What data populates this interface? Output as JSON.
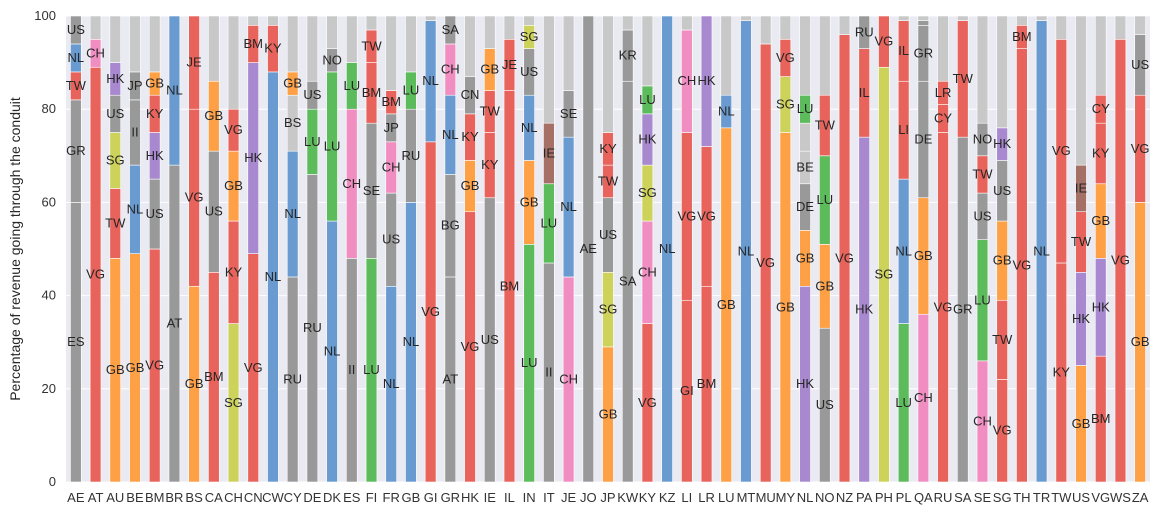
{
  "colors": {
    "background": "#eaeaf2",
    "grid": "#ffffff",
    "palette": {
      "ES": "#999999",
      "GR": "#999999",
      "TW": "#e8635b",
      "NL": "#6a9bd0",
      "US": "#999999",
      "VG": "#e8635b",
      "CH": "#f08ec2",
      "GB": "#fda046",
      "II": "#999999",
      "SG": "#cdd25a",
      "HK": "#a889cf",
      "KY": "#e8635b",
      "BR": "#999999",
      "AT": "#999999",
      "JE": "#e8635b",
      "BM": "#e8635b",
      "RU": "#999999",
      "LU": "#5cbc5b",
      "NO": "#999999",
      "SE": "#999999",
      "JP": "#999999",
      "GI": "#e8635b",
      "BG": "#999999",
      "SA": "#999999",
      "CN": "#999999",
      "IE": "#a57065",
      "IL": "#e8635b",
      "AE": "#999999",
      "KR": "#999999",
      "LI": "#e8635b",
      "DE": "#999999",
      "FR": "#999999",
      "IN": "#999999",
      "CY": "#e8635b",
      "LR": "#e8635b",
      "MT": "#e8635b",
      "OTHER": "#c8c8c8"
    }
  },
  "chart_data": {
    "type": "bar",
    "stacked": true,
    "title": "",
    "xlabel": "",
    "ylabel": "Percentage of revenue going through the conduit",
    "ylim": [
      0,
      100
    ],
    "yticks": [
      0,
      20,
      40,
      60,
      80,
      100
    ],
    "grid": true,
    "categories": [
      "AE",
      "AT",
      "AU",
      "BE",
      "BM",
      "BR",
      "BS",
      "CA",
      "CH",
      "CN",
      "CW",
      "CY",
      "DE",
      "DK",
      "ES",
      "FI",
      "FR",
      "GB",
      "GI",
      "GR",
      "HK",
      "IE",
      "IL",
      "IN",
      "IT",
      "JE",
      "JO",
      "JP",
      "KW",
      "KY",
      "KZ",
      "LI",
      "LR",
      "LU",
      "MT",
      "MU",
      "MY",
      "NL",
      "NO",
      "NZ",
      "PA",
      "PH",
      "PL",
      "QA",
      "RU",
      "SA",
      "SE",
      "SG",
      "TH",
      "TR",
      "TW",
      "US",
      "VG",
      "WS",
      "ZA"
    ],
    "bars": [
      {
        "category": "AE",
        "segments": [
          [
            "ES",
            60
          ],
          [
            "GR",
            22
          ],
          [
            "TW",
            6
          ],
          [
            "NL",
            6
          ],
          [
            "US",
            6
          ]
        ]
      },
      {
        "category": "AT",
        "segments": [
          [
            "VG",
            89
          ],
          [
            "CH",
            6
          ],
          [
            "",
            5
          ]
        ]
      },
      {
        "category": "AU",
        "segments": [
          [
            "GB",
            48
          ],
          [
            "TW",
            15
          ],
          [
            "SG",
            12
          ],
          [
            "US",
            8
          ],
          [
            "HK",
            7
          ],
          [
            "",
            10
          ]
        ]
      },
      {
        "category": "BE",
        "segments": [
          [
            "GB",
            49
          ],
          [
            "NL",
            19
          ],
          [
            "II",
            14
          ],
          [
            "JP",
            6
          ],
          [
            "",
            12
          ]
        ]
      },
      {
        "category": "BM",
        "segments": [
          [
            "VG",
            50
          ],
          [
            "US",
            15
          ],
          [
            "HK",
            10
          ],
          [
            "KY",
            8
          ],
          [
            "GB",
            5
          ],
          [
            "",
            12
          ]
        ]
      },
      {
        "category": "BR",
        "segments": [
          [
            "AT",
            68
          ],
          [
            "NL",
            32
          ]
        ]
      },
      {
        "category": "BS",
        "segments": [
          [
            "GB",
            42
          ],
          [
            "VG",
            38
          ],
          [
            "JE",
            20
          ]
        ]
      },
      {
        "category": "CA",
        "segments": [
          [
            "BM",
            45
          ],
          [
            "US",
            26
          ],
          [
            "GB",
            15
          ],
          [
            "",
            14
          ]
        ]
      },
      {
        "category": "CH",
        "segments": [
          [
            "SG",
            34
          ],
          [
            "KY",
            22
          ],
          [
            "GB",
            15
          ],
          [
            "VG",
            9
          ],
          [
            "",
            20
          ]
        ]
      },
      {
        "category": "CN",
        "segments": [
          [
            "VG",
            49
          ],
          [
            "HK",
            41
          ],
          [
            "BM",
            8
          ],
          [
            "",
            2
          ]
        ]
      },
      {
        "category": "CW",
        "segments": [
          [
            "NL",
            88
          ],
          [
            "KY",
            10
          ],
          [
            "",
            2
          ]
        ]
      },
      {
        "category": "CY",
        "segments": [
          [
            "RU",
            44
          ],
          [
            "NL",
            27
          ],
          [
            "BS",
            12
          ],
          [
            "GB",
            5
          ],
          [
            "",
            12
          ]
        ]
      },
      {
        "category": "DE",
        "segments": [
          [
            "RU",
            66
          ],
          [
            "LU",
            14
          ],
          [
            "US",
            6
          ],
          [
            "",
            14
          ]
        ]
      },
      {
        "category": "DK",
        "segments": [
          [
            "NL",
            56
          ],
          [
            "LU",
            32
          ],
          [
            "NO",
            5
          ],
          [
            "",
            7
          ]
        ]
      },
      {
        "category": "ES",
        "segments": [
          [
            "II",
            48
          ],
          [
            "CH",
            32
          ],
          [
            "LU",
            10
          ],
          [
            "",
            10
          ]
        ]
      },
      {
        "category": "FI",
        "segments": [
          [
            "LU",
            48
          ],
          [
            "SE",
            29
          ],
          [
            "BM",
            13
          ],
          [
            "TW",
            7
          ],
          [
            "",
            3
          ]
        ]
      },
      {
        "category": "FR",
        "segments": [
          [
            "NL",
            42
          ],
          [
            "US",
            20
          ],
          [
            "CH",
            11
          ],
          [
            "JP",
            6
          ],
          [
            "BM",
            5
          ],
          [
            "",
            16
          ]
        ]
      },
      {
        "category": "GB",
        "segments": [
          [
            "NL",
            60
          ],
          [
            "RU",
            20
          ],
          [
            "LU",
            8
          ],
          [
            "",
            12
          ]
        ]
      },
      {
        "category": "GI",
        "segments": [
          [
            "VG",
            73
          ],
          [
            "NL",
            26
          ],
          [
            "",
            1
          ]
        ]
      },
      {
        "category": "GR",
        "segments": [
          [
            "AT",
            44
          ],
          [
            "BG",
            22
          ],
          [
            "NL",
            17
          ],
          [
            "CH",
            11
          ],
          [
            "SA",
            6
          ]
        ]
      },
      {
        "category": "HK",
        "segments": [
          [
            "VG",
            58
          ],
          [
            "GB",
            11
          ],
          [
            "KY",
            10
          ],
          [
            "CN",
            8
          ],
          [
            "",
            13
          ]
        ]
      },
      {
        "category": "IE",
        "segments": [
          [
            "US",
            61
          ],
          [
            "KY",
            14
          ],
          [
            "TW",
            9
          ],
          [
            "GB",
            9
          ],
          [
            "",
            7
          ]
        ]
      },
      {
        "category": "IL",
        "segments": [
          [
            "BM",
            84
          ],
          [
            "JE",
            11
          ],
          [
            "",
            5
          ]
        ]
      },
      {
        "category": "IN",
        "segments": [
          [
            "LU",
            51
          ],
          [
            "GB",
            18
          ],
          [
            "NL",
            14
          ],
          [
            "US",
            10
          ],
          [
            "SG",
            5
          ],
          [
            "",
            2
          ]
        ]
      },
      {
        "category": "IT",
        "segments": [
          [
            "II",
            47
          ],
          [
            "LU",
            17
          ],
          [
            "IE",
            13
          ],
          [
            "",
            23
          ]
        ]
      },
      {
        "category": "JE",
        "segments": [
          [
            "CH",
            44
          ],
          [
            "NL",
            30
          ],
          [
            "SE",
            10
          ],
          [
            "",
            16
          ]
        ]
      },
      {
        "category": "JO",
        "segments": [
          [
            "AE",
            100
          ]
        ]
      },
      {
        "category": "JP",
        "segments": [
          [
            "GB",
            29
          ],
          [
            "SG",
            16
          ],
          [
            "US",
            16
          ],
          [
            "TW",
            7
          ],
          [
            "KY",
            7
          ],
          [
            "",
            25
          ]
        ]
      },
      {
        "category": "KW",
        "segments": [
          [
            "SA",
            86
          ],
          [
            "KR",
            11
          ],
          [
            "",
            3
          ]
        ]
      },
      {
        "category": "KY",
        "segments": [
          [
            "VG",
            34
          ],
          [
            "CH",
            22
          ],
          [
            "SG",
            12
          ],
          [
            "HK",
            11
          ],
          [
            "LU",
            6
          ],
          [
            "",
            15
          ]
        ]
      },
      {
        "category": "KZ",
        "segments": [
          [
            "NL",
            100
          ]
        ]
      },
      {
        "category": "LI",
        "segments": [
          [
            "GI",
            39
          ],
          [
            "VG",
            36
          ],
          [
            "CH",
            22
          ],
          [
            "",
            3
          ]
        ]
      },
      {
        "category": "LR",
        "segments": [
          [
            "BM",
            42
          ],
          [
            "VG",
            30
          ],
          [
            "HK",
            28
          ]
        ]
      },
      {
        "category": "LU",
        "segments": [
          [
            "GB",
            76
          ],
          [
            "NL",
            7
          ],
          [
            "",
            17
          ]
        ]
      },
      {
        "category": "MT",
        "segments": [
          [
            "NL",
            99
          ],
          [
            "",
            1
          ]
        ]
      },
      {
        "category": "MU",
        "segments": [
          [
            "VG",
            94
          ],
          [
            "",
            6
          ]
        ]
      },
      {
        "category": "MY",
        "segments": [
          [
            "GB",
            75
          ],
          [
            "SG",
            12
          ],
          [
            "VG",
            8
          ],
          [
            "",
            5
          ]
        ]
      },
      {
        "category": "NL",
        "segments": [
          [
            "HK",
            42
          ],
          [
            "GB",
            12
          ],
          [
            "DE",
            10
          ],
          [
            "BE",
            7
          ],
          [
            "",
            6
          ],
          [
            "LU",
            6
          ],
          [
            "",
            17
          ]
        ]
      },
      {
        "category": "NO",
        "segments": [
          [
            "US",
            33
          ],
          [
            "GB",
            18
          ],
          [
            "LU",
            19
          ],
          [
            "TW",
            13
          ],
          [
            "",
            17
          ]
        ]
      },
      {
        "category": "NZ",
        "segments": [
          [
            "VG",
            96
          ],
          [
            "",
            4
          ]
        ]
      },
      {
        "category": "PA",
        "segments": [
          [
            "HK",
            74
          ],
          [
            "IL",
            19
          ],
          [
            "RU",
            7
          ]
        ]
      },
      {
        "category": "PH",
        "segments": [
          [
            "SG",
            89
          ],
          [
            "VG",
            11
          ]
        ]
      },
      {
        "category": "PL",
        "segments": [
          [
            "LU",
            34
          ],
          [
            "NL",
            31
          ],
          [
            "LI",
            21
          ],
          [
            "IL",
            13
          ],
          [
            "",
            1
          ]
        ]
      },
      {
        "category": "QA",
        "segments": [
          [
            "CH",
            36
          ],
          [
            "GB",
            25
          ],
          [
            "DE",
            25
          ],
          [
            "GR",
            12
          ],
          [
            "FR",
            1
          ],
          [
            "",
            1
          ]
        ]
      },
      {
        "category": "RU",
        "segments": [
          [
            "VG",
            75
          ],
          [
            "CY",
            6
          ],
          [
            "LR",
            5
          ],
          [
            "",
            14
          ]
        ]
      },
      {
        "category": "SA",
        "segments": [
          [
            "GR",
            74
          ],
          [
            "TW",
            25
          ],
          [
            "",
            1
          ]
        ]
      },
      {
        "category": "SE",
        "segments": [
          [
            "CH",
            26
          ],
          [
            "LU",
            26
          ],
          [
            "US",
            10
          ],
          [
            "TW",
            8
          ],
          [
            "NO",
            7
          ],
          [
            "",
            23
          ]
        ]
      },
      {
        "category": "SG",
        "segments": [
          [
            "VG",
            22
          ],
          [
            "TW",
            17
          ],
          [
            "GB",
            17
          ],
          [
            "US",
            13
          ],
          [
            "HK",
            7
          ],
          [
            "",
            24
          ]
        ]
      },
      {
        "category": "TH",
        "segments": [
          [
            "VG",
            93
          ],
          [
            "BM",
            5
          ],
          [
            "",
            2
          ]
        ]
      },
      {
        "category": "TR",
        "segments": [
          [
            "NL",
            99
          ],
          [
            "",
            1
          ]
        ]
      },
      {
        "category": "TW",
        "segments": [
          [
            "KY",
            47
          ],
          [
            "VG",
            48
          ],
          [
            "",
            5
          ]
        ]
      },
      {
        "category": "US",
        "segments": [
          [
            "GB",
            25
          ],
          [
            "HK",
            20
          ],
          [
            "TW",
            13
          ],
          [
            "IE",
            10
          ],
          [
            "",
            32
          ]
        ]
      },
      {
        "category": "VG",
        "segments": [
          [
            "BM",
            27
          ],
          [
            "HK",
            21
          ],
          [
            "GB",
            16
          ],
          [
            "KY",
            13
          ],
          [
            "CY",
            6
          ],
          [
            "",
            17
          ]
        ]
      },
      {
        "category": "WS",
        "segments": [
          [
            "VG",
            95
          ],
          [
            "",
            5
          ]
        ]
      },
      {
        "category": "ZA",
        "segments": [
          [
            "GB",
            60
          ],
          [
            "VG",
            23
          ],
          [
            "US",
            13
          ],
          [
            "",
            4
          ]
        ]
      }
    ]
  }
}
